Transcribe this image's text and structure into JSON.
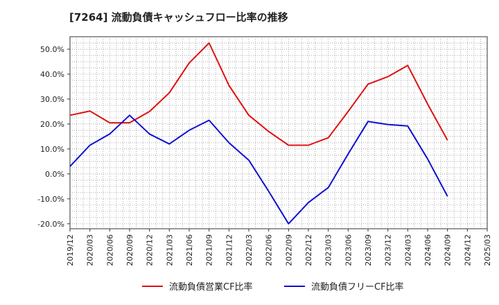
{
  "title": "[7264]  流動負債キャッシュフロー比率の推移",
  "chart_data": {
    "type": "line",
    "title": "[7264]  流動負債キャッシュフロー比率の推移",
    "xlabel": "",
    "ylabel": "",
    "ylim": [
      -22,
      55
    ],
    "y_ticks": [
      -20,
      -10,
      0,
      10,
      20,
      30,
      40,
      50
    ],
    "y_tick_labels": [
      "-20.0%",
      "-10.0%",
      "0.0%",
      "10.0%",
      "20.0%",
      "30.0%",
      "40.0%",
      "50.0%"
    ],
    "x_tick_labels": [
      "2019/12",
      "2020/03",
      "2020/06",
      "2020/09",
      "2020/12",
      "2021/03",
      "2021/06",
      "2021/09",
      "2021/12",
      "2022/03",
      "2022/06",
      "2022/09",
      "2022/12",
      "2023/03",
      "2023/06",
      "2023/09",
      "2023/12",
      "2024/03",
      "2024/06",
      "2024/09",
      "2024/12",
      "2025/03"
    ],
    "grid": true,
    "legend_position": "bottom",
    "series": [
      {
        "name": "流動負債営業CF比率",
        "color": "#e01010",
        "x": [
          "2019/12",
          "2020/03",
          "2020/06",
          "2020/09",
          "2020/12",
          "2021/03",
          "2021/06",
          "2021/09",
          "2021/12",
          "2022/03",
          "2022/06",
          "2022/09",
          "2022/12",
          "2023/03",
          "2023/06",
          "2023/09",
          "2023/12",
          "2024/03",
          "2024/06",
          "2024/09"
        ],
        "values": [
          23.5,
          25.2,
          20.5,
          20.5,
          25.0,
          32.5,
          44.5,
          52.5,
          35.5,
          23.5,
          17.0,
          11.5,
          11.5,
          14.5,
          25.0,
          36.0,
          39.0,
          43.5,
          28.0,
          13.5
        ]
      },
      {
        "name": "流動負債フリーCF比率",
        "color": "#1010d0",
        "x": [
          "2019/12",
          "2020/03",
          "2020/06",
          "2020/09",
          "2020/12",
          "2021/03",
          "2021/06",
          "2021/09",
          "2021/12",
          "2022/03",
          "2022/06",
          "2022/09",
          "2022/12",
          "2023/03",
          "2023/06",
          "2023/09",
          "2023/12",
          "2024/03",
          "2024/06",
          "2024/09"
        ],
        "values": [
          3.0,
          11.5,
          16.0,
          23.5,
          16.0,
          12.0,
          17.5,
          21.5,
          12.5,
          5.5,
          -7.0,
          -20.0,
          -11.5,
          -5.5,
          8.0,
          21.0,
          19.8,
          19.2,
          6.0,
          -9.0
        ]
      }
    ]
  }
}
